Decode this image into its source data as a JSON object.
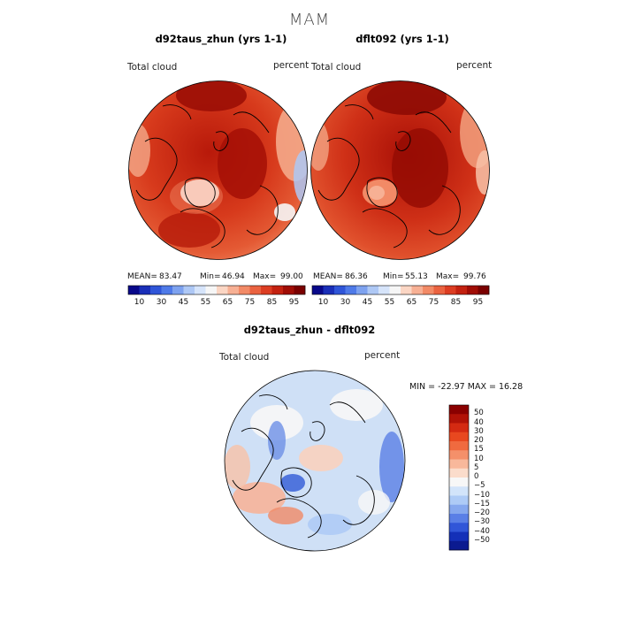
{
  "figure": {
    "season": "MAM"
  },
  "panels": [
    {
      "title": "d92taus_zhun (yrs 1-1)",
      "variable_label": "Total cloud",
      "units_label": "percent",
      "stats": {
        "mean_label": "MEAN=",
        "mean": "83.47",
        "min_label": "Min=",
        "min": "46.94",
        "max_label": "Max=",
        "max": "99.00"
      }
    },
    {
      "title": "dflt092 (yrs 1-1)",
      "variable_label": "Total cloud",
      "units_label": "percent",
      "stats": {
        "mean_label": "MEAN=",
        "mean": "86.36",
        "min_label": "Min=",
        "min": "55.13",
        "max_label": "Max=",
        "max": "99.76"
      }
    },
    {
      "title": "d92taus_zhun - dflt092",
      "variable_label": "Total cloud",
      "units_label": "percent",
      "minmax_text": "MIN = -22.97  MAX =   16.28"
    }
  ],
  "colorbar_abs": {
    "tick_labels": [
      "10",
      "30",
      "45",
      "55",
      "65",
      "75",
      "85",
      "95"
    ],
    "colors": [
      "#08088a",
      "#1a2fb8",
      "#2f55d8",
      "#4f7ae8",
      "#7ea2ef",
      "#aec8f5",
      "#d6e4fa",
      "#f6f6f6",
      "#fbd6c4",
      "#f7b094",
      "#f28a66",
      "#ea6240",
      "#dc3d22",
      "#c32110",
      "#a00d05",
      "#7a0000"
    ]
  },
  "colorbar_diff": {
    "tick_labels": [
      "50",
      "40",
      "30",
      "20",
      "15",
      "10",
      "5",
      "0",
      "−5",
      "−10",
      "−15",
      "−20",
      "−30",
      "−40",
      "−50"
    ],
    "colors": [
      "#8a0000",
      "#b11207",
      "#d42a12",
      "#e8481f",
      "#f06a3f",
      "#f4906a",
      "#f8b89b",
      "#fbdccb",
      "#f7f7f7",
      "#d2e4fa",
      "#aecbf6",
      "#86a8ee",
      "#5a7fe6",
      "#3156d8",
      "#1430b8",
      "#0b1a90"
    ]
  },
  "theme": {
    "cloud_high": "#c8260f",
    "cloud_max": "#9b0e05",
    "diff_neutral": "#cfe0f6"
  }
}
